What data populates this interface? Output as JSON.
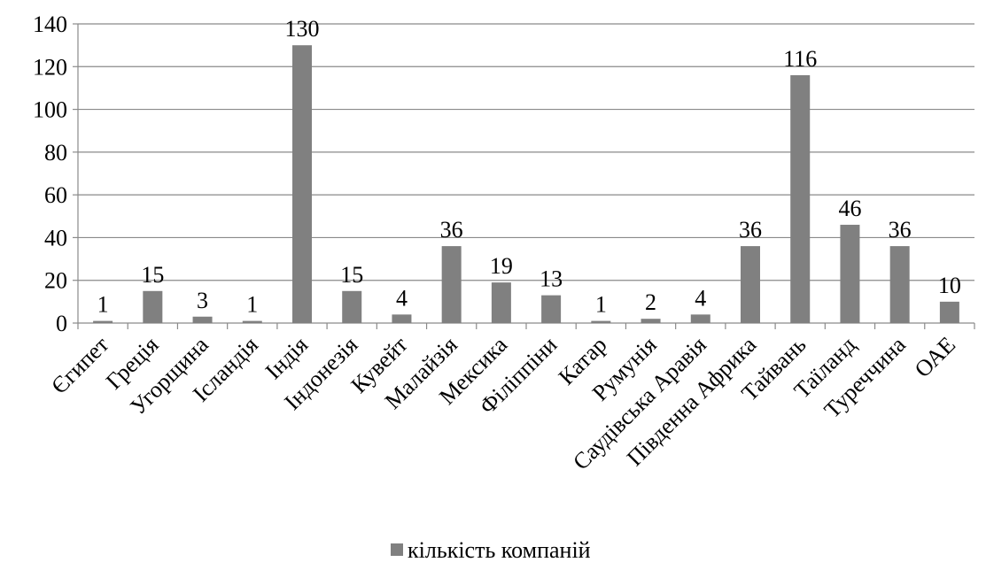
{
  "chart_data": {
    "type": "bar",
    "title": "",
    "xlabel": "",
    "ylabel": "",
    "ylim": [
      0,
      140
    ],
    "yticks": [
      0,
      20,
      40,
      60,
      80,
      100,
      120,
      140
    ],
    "grid": true,
    "legend_position": "bottom",
    "categories": [
      "Єгипет",
      "Греція",
      "Угорщина",
      "Ісландія",
      "Індія",
      "Індонезія",
      "Кувейт",
      "Малайзія",
      "Мексика",
      "Філіппіни",
      "Катар",
      "Румунія",
      "Саудівська Аравія",
      "Південна Африка",
      "Тайвань",
      "Таїланд",
      "Туреччина",
      "ОАЕ"
    ],
    "series": [
      {
        "name": "кількість компаній",
        "color": "#808080",
        "values": [
          1,
          15,
          3,
          1,
          130,
          15,
          4,
          36,
          19,
          13,
          1,
          2,
          4,
          36,
          116,
          46,
          36,
          10
        ]
      }
    ]
  }
}
